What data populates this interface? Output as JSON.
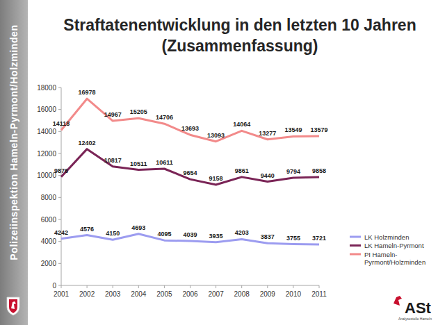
{
  "chart_data": {
    "type": "line",
    "title": "Straftatenentwicklung in den letzten 10 Jahren",
    "subtitle": "(Zusammenfassung)",
    "categories": [
      "2001",
      "2002",
      "2003",
      "2004",
      "2005",
      "2006",
      "2007",
      "2008",
      "2009",
      "2010",
      "2011"
    ],
    "series": [
      {
        "name": "LK Holzminden",
        "color": "#9c9cf0",
        "values": [
          4242,
          4576,
          4150,
          4693,
          4095,
          4039,
          3935,
          4203,
          3837,
          3755,
          3721
        ]
      },
      {
        "name": "LK Hameln-Pyrmont",
        "color": "#7a2456",
        "values": [
          9876,
          12402,
          10817,
          10511,
          10611,
          9654,
          9158,
          9861,
          9440,
          9794,
          9858
        ]
      },
      {
        "name": "PI Hameln-Pyrmont/Holzminden",
        "color": "#f28a8a",
        "values": [
          14118,
          16978,
          14967,
          15205,
          14706,
          13693,
          13093,
          14064,
          13277,
          13549,
          13579
        ]
      }
    ],
    "ylim": [
      0,
      18000
    ],
    "yticks": [
      0,
      2000,
      4000,
      6000,
      8000,
      10000,
      12000,
      14000,
      16000,
      18000
    ],
    "grid": false,
    "legend": "right",
    "data_labels": true
  },
  "sidebar": {
    "text": "Polizeiinspektion Hameln-Pyrmont/Holzminden"
  },
  "logo": {
    "text": "ASt",
    "subtext": "Analysestelle Hameln"
  }
}
